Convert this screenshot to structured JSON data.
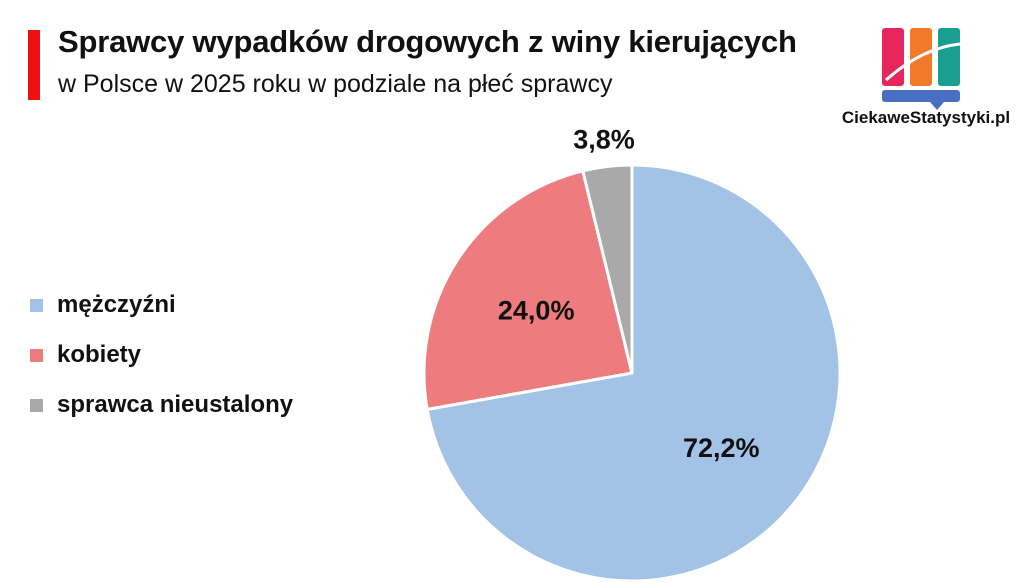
{
  "header": {
    "title": "Sprawcy wypadków drogowych z winy kierujących",
    "subtitle": "w Polsce w 2025 roku w podziale na płeć sprawcy",
    "accent_color": "#ee1111"
  },
  "brand": {
    "name": "CiekaweStatystyki.pl",
    "logo_icon": "bar-chart-logo-icon",
    "colors": [
      "#e8265e",
      "#f27a2b",
      "#1a9e8f",
      "#4a6fc2"
    ]
  },
  "chart_data": {
    "type": "pie",
    "title": "",
    "start_angle_deg": 0,
    "direction": "clockwise",
    "legend_position": "left",
    "slices": [
      {
        "label": "mężczyźni",
        "value": 72.2,
        "display": "72,2%",
        "color": "#a2c3e6"
      },
      {
        "label": "kobiety",
        "value": 24.0,
        "display": "24,0%",
        "color": "#ee7b7d"
      },
      {
        "label": "sprawca nieustalony",
        "value": 3.8,
        "display": "3,8%",
        "color": "#a9a9a9"
      }
    ]
  }
}
